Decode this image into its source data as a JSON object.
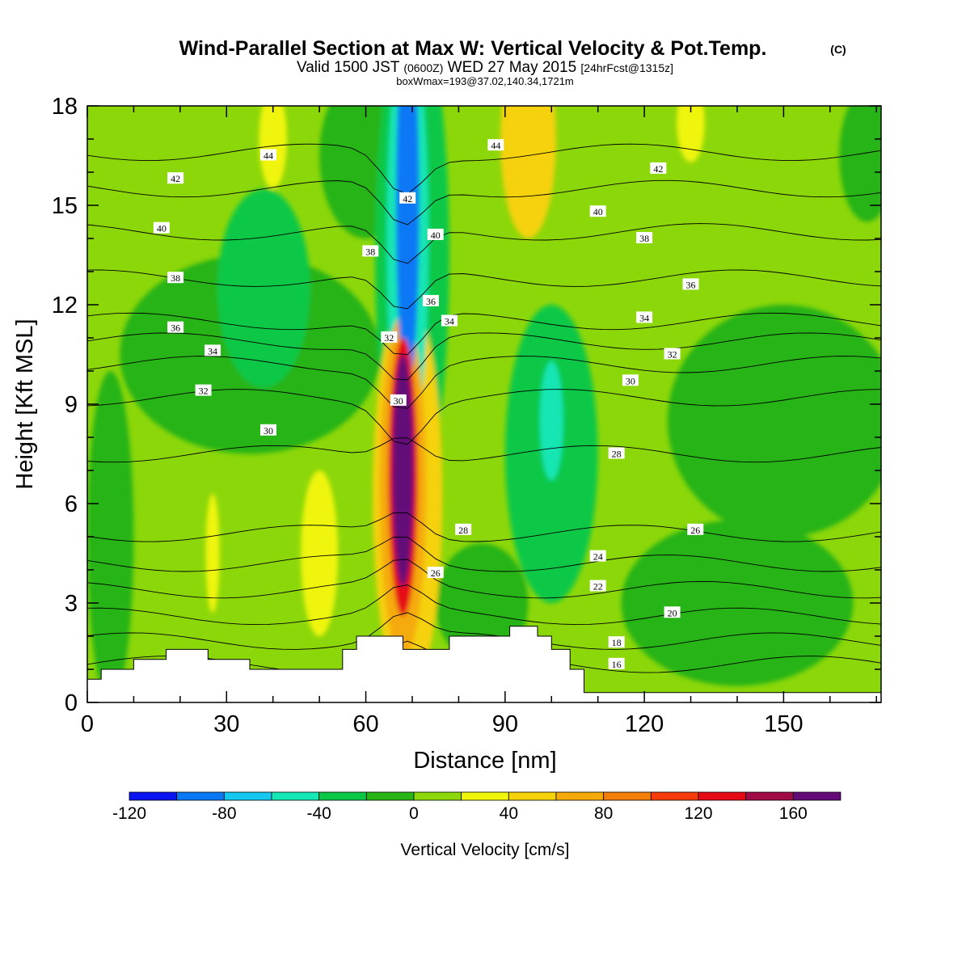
{
  "chart_data": {
    "type": "heatmap",
    "title": "Wind-Parallel Section at Max W: Vertical Velocity & Pot.Temp.",
    "title_mark": "(C)",
    "subtitle": {
      "valid": "Valid 1500 JST",
      "zulu": "(0600Z)",
      "date": "WED 27 May 2015",
      "fcst": "[24hrFcst@1315z]"
    },
    "subtitle2": "boxWmax=193@37.02,140.34,1721m",
    "xlabel": "Distance [nm]",
    "ylabel": "Height [Kft MSL]",
    "xlim": [
      0,
      171
    ],
    "ylim": [
      0,
      18
    ],
    "x_ticks": [
      "0",
      "30",
      "60",
      "90",
      "120",
      "150"
    ],
    "x_tick_values": [
      0,
      30,
      60,
      90,
      120,
      150
    ],
    "y_ticks": [
      "0",
      "3",
      "6",
      "9",
      "12",
      "15",
      "18"
    ],
    "y_tick_values": [
      0,
      3,
      6,
      9,
      12,
      15,
      18
    ],
    "colorbar": {
      "label": "Vertical Velocity [cm/s]",
      "min": -120,
      "max": 180,
      "step": 20,
      "tick_labels": [
        "-120",
        "-80",
        "-40",
        "0",
        "40",
        "80",
        "120",
        "160"
      ],
      "tick_values": [
        -120,
        -80,
        -40,
        0,
        40,
        80,
        120,
        160
      ],
      "colors": [
        "#0a14f0",
        "#0a78f5",
        "#14c8f0",
        "#14e6b4",
        "#0ac846",
        "#28b414",
        "#8cd70a",
        "#f0f50a",
        "#f5d20a",
        "#f5aa0a",
        "#f57d0a",
        "#f53c0a",
        "#e60a14",
        "#a00a46",
        "#640a78"
      ]
    },
    "background_velocity": 10,
    "velocity_features": [
      {
        "x": 68,
        "y": 7,
        "rx": 2.3,
        "ry": 3.5,
        "value": 180
      },
      {
        "x": 68,
        "y": 6.8,
        "rx": 3.2,
        "ry": 4.2,
        "value": 130
      },
      {
        "x": 68,
        "y": 6.5,
        "rx": 5,
        "ry": 5.2,
        "value": 70
      },
      {
        "x": 69,
        "y": 6.2,
        "rx": 7.5,
        "ry": 6,
        "value": 40
      },
      {
        "x": 50,
        "y": 4.5,
        "rx": 4,
        "ry": 2.5,
        "value": 30
      },
      {
        "x": 27,
        "y": 4.5,
        "rx": 1.5,
        "ry": 1.8,
        "value": 30
      },
      {
        "x": 69,
        "y": 15,
        "rx": 2.5,
        "ry": 5.5,
        "value": -100
      },
      {
        "x": 69,
        "y": 14,
        "rx": 4.5,
        "ry": 6.5,
        "value": -60
      },
      {
        "x": 70,
        "y": 13.5,
        "rx": 8,
        "ry": 7.5,
        "value": -30
      },
      {
        "x": 100,
        "y": 7.5,
        "rx": 10,
        "ry": 4.5,
        "value": -25
      },
      {
        "x": 100,
        "y": 8.5,
        "rx": 2.5,
        "ry": 1.8,
        "value": -45
      },
      {
        "x": 38,
        "y": 12.5,
        "rx": 10,
        "ry": 3,
        "value": -30
      },
      {
        "x": 35,
        "y": 10.5,
        "rx": 28,
        "ry": 3,
        "value": -10
      },
      {
        "x": 150,
        "y": 8.5,
        "rx": 25,
        "ry": 3.5,
        "value": -10
      },
      {
        "x": 140,
        "y": 3,
        "rx": 25,
        "ry": 2.5,
        "value": -5
      },
      {
        "x": 85,
        "y": 3,
        "rx": 10,
        "ry": 1.8,
        "value": -10
      },
      {
        "x": 95,
        "y": 17,
        "rx": 6,
        "ry": 3,
        "value": 55
      },
      {
        "x": 40,
        "y": 17,
        "rx": 3,
        "ry": 1.5,
        "value": 25
      },
      {
        "x": 130,
        "y": 17.5,
        "rx": 3,
        "ry": 1.2,
        "value": 25
      },
      {
        "x": 5,
        "y": 5,
        "rx": 5,
        "ry": 5,
        "value": -10
      },
      {
        "x": 168,
        "y": 16.5,
        "rx": 6,
        "ry": 2,
        "value": -10
      },
      {
        "x": 60,
        "y": 16.5,
        "rx": 10,
        "ry": 2.5,
        "value": -15
      }
    ],
    "terrain_kft": [
      [
        0,
        0.7
      ],
      [
        3,
        0.7
      ],
      [
        3,
        1
      ],
      [
        10,
        1
      ],
      [
        10,
        1.3
      ],
      [
        17,
        1.3
      ],
      [
        17,
        1.6
      ],
      [
        26,
        1.6
      ],
      [
        26,
        1.3
      ],
      [
        35,
        1.3
      ],
      [
        35,
        1
      ],
      [
        55,
        1
      ],
      [
        55,
        1.6
      ],
      [
        58,
        1.6
      ],
      [
        58,
        2
      ],
      [
        68,
        2
      ],
      [
        68,
        1.6
      ],
      [
        78,
        1.6
      ],
      [
        78,
        2
      ],
      [
        91,
        2
      ],
      [
        91,
        2.3
      ],
      [
        97,
        2.3
      ],
      [
        97,
        2
      ],
      [
        100,
        2
      ],
      [
        100,
        1.6
      ],
      [
        104,
        1.6
      ],
      [
        104,
        1
      ],
      [
        107,
        1
      ],
      [
        107,
        0.3
      ],
      [
        171,
        0.3
      ]
    ],
    "theta_contours": [
      {
        "label": "16",
        "y": 1.15
      },
      {
        "label": "18",
        "y": 1.85
      },
      {
        "label": "20",
        "y": 2.6
      },
      {
        "label": "22",
        "y": 3.4
      },
      {
        "label": "24",
        "y": 4.2
      },
      {
        "label": "26",
        "y": 5.1
      },
      {
        "label": "28",
        "y": 7.5
      },
      {
        "label": "30",
        "y": 9.2
      },
      {
        "label": "32",
        "y": 10.2
      },
      {
        "label": "34",
        "y": 10.9
      },
      {
        "label": "36",
        "y": 11.5
      },
      {
        "label": "38",
        "y": 12.8
      },
      {
        "label": "40",
        "y": 14.2
      },
      {
        "label": "42",
        "y": 15.5
      },
      {
        "label": "44",
        "y": 16.6
      }
    ],
    "theta_labels": [
      {
        "text": "44",
        "x": 39,
        "y": 16.5
      },
      {
        "text": "42",
        "x": 19,
        "y": 15.8
      },
      {
        "text": "40",
        "x": 16,
        "y": 14.3
      },
      {
        "text": "38",
        "x": 19,
        "y": 12.8
      },
      {
        "text": "36",
        "x": 19,
        "y": 11.3
      },
      {
        "text": "34",
        "x": 27,
        "y": 10.6
      },
      {
        "text": "32",
        "x": 25,
        "y": 9.4
      },
      {
        "text": "30",
        "x": 39,
        "y": 8.2
      },
      {
        "text": "38",
        "x": 61,
        "y": 13.6
      },
      {
        "text": "42",
        "x": 69,
        "y": 15.2
      },
      {
        "text": "40",
        "x": 75,
        "y": 14.1
      },
      {
        "text": "36",
        "x": 74,
        "y": 12.1
      },
      {
        "text": "34",
        "x": 78,
        "y": 11.5
      },
      {
        "text": "32",
        "x": 65,
        "y": 11
      },
      {
        "text": "30",
        "x": 67,
        "y": 9.1
      },
      {
        "text": "44",
        "x": 88,
        "y": 16.8
      },
      {
        "text": "42",
        "x": 123,
        "y": 16.1
      },
      {
        "text": "40",
        "x": 110,
        "y": 14.8
      },
      {
        "text": "38",
        "x": 120,
        "y": 14
      },
      {
        "text": "36",
        "x": 130,
        "y": 12.6
      },
      {
        "text": "34",
        "x": 120,
        "y": 11.6
      },
      {
        "text": "32",
        "x": 126,
        "y": 10.5
      },
      {
        "text": "30",
        "x": 117,
        "y": 9.7
      },
      {
        "text": "28",
        "x": 114,
        "y": 7.5
      },
      {
        "text": "28",
        "x": 81,
        "y": 5.2
      },
      {
        "text": "26",
        "x": 131,
        "y": 5.2
      },
      {
        "text": "26",
        "x": 75,
        "y": 3.9
      },
      {
        "text": "24",
        "x": 110,
        "y": 4.4
      },
      {
        "text": "22",
        "x": 110,
        "y": 3.5
      },
      {
        "text": "20",
        "x": 126,
        "y": 2.7
      },
      {
        "text": "18",
        "x": 114,
        "y": 1.8
      },
      {
        "text": "16",
        "x": 114,
        "y": 1.15
      }
    ]
  }
}
